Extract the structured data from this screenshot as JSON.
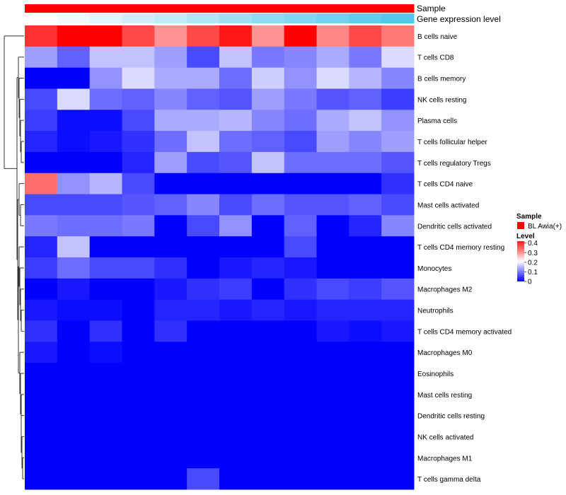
{
  "chart_data": {
    "type": "heatmap",
    "title": "",
    "annotation_tracks": [
      {
        "name": "Sample"
      },
      {
        "name": "Gene expression level"
      }
    ],
    "rows": [
      "B cells naive",
      "T cells CD8",
      "B cells memory",
      "NK cells resting",
      "Plasma cells",
      "T cells follicular helper",
      "T cells regulatory  Tregs",
      "T cells CD4 naive",
      "Mast cells activated",
      "Dendritic cells activated",
      "T cells CD4 memory resting",
      "Monocytes",
      "Macrophages M2",
      "Neutrophils",
      "T cells CD4 memory activated",
      "Macrophages M0",
      "Eosinophils",
      "Mast cells resting",
      "Dendritic cells resting",
      "NK cells activated",
      "Macrophages M1",
      "T cells gamma delta"
    ],
    "n_columns": 12,
    "values": [
      [
        0.38,
        0.42,
        0.42,
        0.36,
        0.3,
        0.36,
        0.4,
        0.3,
        0.42,
        0.31,
        0.36,
        0.32
      ],
      [
        0.13,
        0.08,
        0.16,
        0.16,
        0.13,
        0.06,
        0.16,
        0.1,
        0.11,
        0.14,
        0.1,
        0.18
      ],
      [
        0.0,
        0.0,
        0.12,
        0.18,
        0.14,
        0.14,
        0.09,
        0.17,
        0.12,
        0.18,
        0.15,
        0.11
      ],
      [
        0.06,
        0.18,
        0.09,
        0.08,
        0.11,
        0.08,
        0.07,
        0.13,
        0.1,
        0.07,
        0.08,
        0.05
      ],
      [
        0.05,
        0.01,
        0.01,
        0.06,
        0.14,
        0.14,
        0.15,
        0.11,
        0.09,
        0.14,
        0.16,
        0.12
      ],
      [
        0.03,
        0.01,
        0.02,
        0.04,
        0.09,
        0.16,
        0.09,
        0.08,
        0.06,
        0.13,
        0.11,
        0.13
      ],
      [
        0.0,
        0.0,
        0.0,
        0.03,
        0.13,
        0.06,
        0.07,
        0.16,
        0.09,
        0.09,
        0.09,
        0.07
      ],
      [
        0.33,
        0.12,
        0.15,
        0.06,
        0.0,
        0.0,
        0.0,
        0.0,
        0.0,
        0.0,
        0.0,
        0.04
      ],
      [
        0.06,
        0.06,
        0.06,
        0.07,
        0.08,
        0.11,
        0.06,
        0.09,
        0.07,
        0.07,
        0.08,
        0.06
      ],
      [
        0.1,
        0.09,
        0.09,
        0.1,
        0.0,
        0.06,
        0.12,
        0.0,
        0.08,
        0.0,
        0.03,
        0.11
      ],
      [
        0.03,
        0.16,
        0.0,
        0.0,
        0.0,
        0.0,
        0.0,
        0.0,
        0.06,
        0.0,
        0.0,
        0.0
      ],
      [
        0.05,
        0.09,
        0.06,
        0.06,
        0.04,
        0.0,
        0.02,
        0.03,
        0.02,
        0.0,
        0.0,
        0.0
      ],
      [
        0.0,
        0.02,
        0.0,
        0.0,
        0.02,
        0.04,
        0.05,
        0.0,
        0.04,
        0.06,
        0.05,
        0.07
      ],
      [
        0.02,
        0.01,
        0.01,
        0.0,
        0.03,
        0.03,
        0.02,
        0.03,
        0.02,
        0.03,
        0.03,
        0.03
      ],
      [
        0.04,
        0.0,
        0.04,
        0.0,
        0.04,
        0.0,
        0.0,
        0.0,
        0.0,
        0.02,
        0.01,
        0.02
      ],
      [
        0.02,
        0.0,
        0.01,
        0.0,
        0.0,
        0.0,
        0.0,
        0.0,
        0.0,
        0.0,
        0.0,
        0.0
      ],
      [
        0.0,
        0.0,
        0.0,
        0.0,
        0.0,
        0.0,
        0.0,
        0.0,
        0.0,
        0.0,
        0.0,
        0.0
      ],
      [
        0.0,
        0.0,
        0.0,
        0.0,
        0.0,
        0.0,
        0.0,
        0.0,
        0.0,
        0.0,
        0.0,
        0.0
      ],
      [
        0.0,
        0.0,
        0.0,
        0.0,
        0.0,
        0.0,
        0.0,
        0.0,
        0.0,
        0.0,
        0.0,
        0.0
      ],
      [
        0.0,
        0.0,
        0.0,
        0.0,
        0.0,
        0.0,
        0.0,
        0.0,
        0.0,
        0.0,
        0.0,
        0.0
      ],
      [
        0.0,
        0.0,
        0.0,
        0.0,
        0.0,
        0.0,
        0.0,
        0.0,
        0.0,
        0.0,
        0.0,
        0.0
      ],
      [
        0.0,
        0.0,
        0.0,
        0.0,
        0.0,
        0.06,
        0.0,
        0.0,
        0.0,
        0.0,
        0.0,
        0.0
      ]
    ],
    "sample_annotation": [
      "BL Awia(+)",
      "BL Awia(+)",
      "BL Awia(+)",
      "BL Awia(+)",
      "BL Awia(+)",
      "BL Awia(+)",
      "BL Awia(+)",
      "BL Awia(+)",
      "BL Awia(+)",
      "BL Awia(+)",
      "BL Awia(+)",
      "BL Awia(+)"
    ],
    "gene_expression_level": [
      0.0,
      0.09,
      0.18,
      0.27,
      0.36,
      0.45,
      0.55,
      0.64,
      0.73,
      0.82,
      0.91,
      1.0
    ],
    "gene_expression_colors": {
      "low": "#ffffff",
      "high": "#4fc8ec"
    },
    "color_scale": {
      "min": 0,
      "max": 0.42,
      "low_color": "#0000ff",
      "mid_color": "#ffffff",
      "high_color": "#ff0000",
      "mid_value": 0.21,
      "ticks": [
        "0",
        "0.1",
        "0.2",
        "0.3",
        "0.4"
      ]
    },
    "legend": {
      "sample_title": "Sample",
      "sample_entry": "BL Awia(+)",
      "sample_color": "#ff0000",
      "level_title": "Level",
      "position": "right"
    }
  }
}
